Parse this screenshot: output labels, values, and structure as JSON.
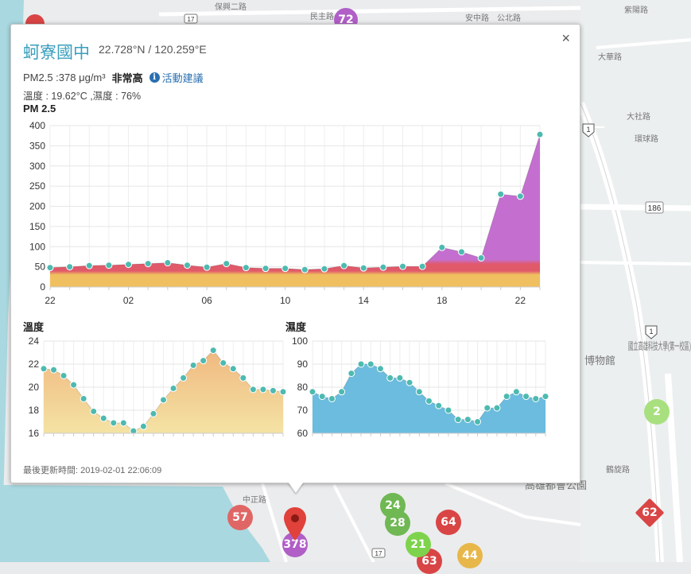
{
  "station": {
    "name": "蚵寮國中",
    "coords": "22.728°N / 120.259°E",
    "pm_text": "PM2.5 :378 μg/m³",
    "level": "非常高",
    "advice_label": "活動建議",
    "weather": "溫度 : 19.62°C ,濕度 : 76%",
    "updated_label": "最後更新時間:",
    "updated_time": "2019-02-01 22:06:09",
    "close_label": "×"
  },
  "map": {
    "road_labels": [
      "民主路",
      "保興二路",
      "公北路",
      "安中路",
      "紫陽路",
      "大社路",
      "大華路",
      "環球路",
      "鶴旋路",
      "中正路",
      "國立高雄科技大學(第一校區)",
      "博物館",
      "高雄都會公園",
      "186",
      "1",
      "17"
    ],
    "markers": [
      {
        "label": "72",
        "color": "#b05fc7"
      },
      {
        "label": "2",
        "color": "#8fd36a"
      },
      {
        "label": "62",
        "color": "#d94545"
      },
      {
        "label": "57",
        "color": "#e06666"
      },
      {
        "label": "24",
        "color": "#6fb854"
      },
      {
        "label": "28",
        "color": "#6fb854"
      },
      {
        "label": "64",
        "color": "#d94545"
      },
      {
        "label": "21",
        "color": "#7ed34c"
      },
      {
        "label": "44",
        "color": "#e8b74a"
      },
      {
        "label": "63",
        "color": "#d94545"
      },
      {
        "label": "378",
        "color": "#b05fc7"
      }
    ]
  },
  "chart_data": [
    {
      "type": "area",
      "title": "PM 2.5",
      "x_tick_labels": [
        "22",
        "02",
        "06",
        "10",
        "14",
        "18",
        "22"
      ],
      "ylim": [
        0,
        400
      ],
      "y_ticks": [
        0,
        50,
        100,
        150,
        200,
        250,
        300,
        350,
        400
      ],
      "values": [
        48,
        50,
        53,
        54,
        56,
        58,
        60,
        54,
        49,
        58,
        48,
        46,
        46,
        43,
        45,
        53,
        47,
        49,
        51,
        51,
        98,
        87,
        72,
        230,
        225,
        378
      ],
      "colors": {
        "low": "#f0c060",
        "mid": "#e05a6a",
        "high": "#c46fd0",
        "point": "#4dbab0"
      }
    },
    {
      "type": "area",
      "title": "溫度",
      "ylim": [
        16,
        24
      ],
      "y_ticks": [
        16,
        18,
        20,
        22,
        24
      ],
      "values": [
        21.6,
        21.5,
        21.0,
        20.2,
        19.0,
        17.9,
        17.3,
        16.9,
        16.9,
        16.2,
        16.6,
        17.7,
        18.9,
        19.9,
        20.8,
        21.9,
        22.3,
        23.2,
        22.1,
        21.6,
        20.8,
        19.8,
        19.8,
        19.7,
        19.6
      ],
      "colors": {
        "fill_top": "#f0b880",
        "fill_bottom": "#f4e3a4",
        "point": "#4dbab0"
      }
    },
    {
      "type": "area",
      "title": "濕度",
      "ylim": [
        60,
        100
      ],
      "y_ticks": [
        60,
        70,
        80,
        90,
        100
      ],
      "values": [
        78,
        76,
        75,
        78,
        86,
        90,
        90,
        88,
        84,
        84,
        82,
        78,
        74,
        72,
        70,
        66,
        66,
        65,
        71,
        71,
        76,
        78,
        76,
        75,
        76
      ],
      "colors": {
        "fill": "#6bbcde",
        "point": "#4dbab0"
      }
    }
  ]
}
